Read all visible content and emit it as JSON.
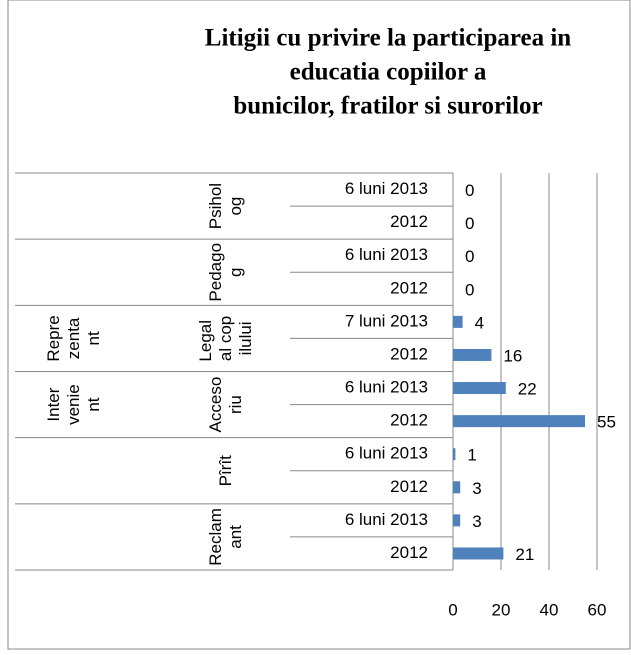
{
  "chart_data": {
    "type": "bar",
    "orientation": "horizontal",
    "title": [
      "Litigii cu privire la participarea in",
      "educatia copiilor a",
      "bunicilor, fratilor si surorilor"
    ],
    "categories": [
      "6 luni 2013",
      "2012",
      "6 luni 2013",
      "2012",
      "7 luni 2013",
      "2012",
      "6 luni 2013",
      "2012",
      "6 luni 2013",
      "2012",
      "6 luni 2013",
      "2012"
    ],
    "groups": [
      {
        "name": "Psiholog"
      },
      {
        "name": "Pedagog"
      },
      {
        "name": "Legal al copilului",
        "parent": "Reprezentant"
      },
      {
        "name": "Accesoriu",
        "parent": "Intervenient"
      },
      {
        "name": "Pîrît"
      },
      {
        "name": "Reclamant"
      }
    ],
    "values": [
      0,
      0,
      0,
      0,
      4,
      16,
      22,
      55,
      1,
      3,
      3,
      21
    ],
    "color": "#4f81bd",
    "xlim": [
      0,
      60
    ],
    "xticks": [
      0,
      20,
      40,
      60
    ],
    "grid": true
  }
}
